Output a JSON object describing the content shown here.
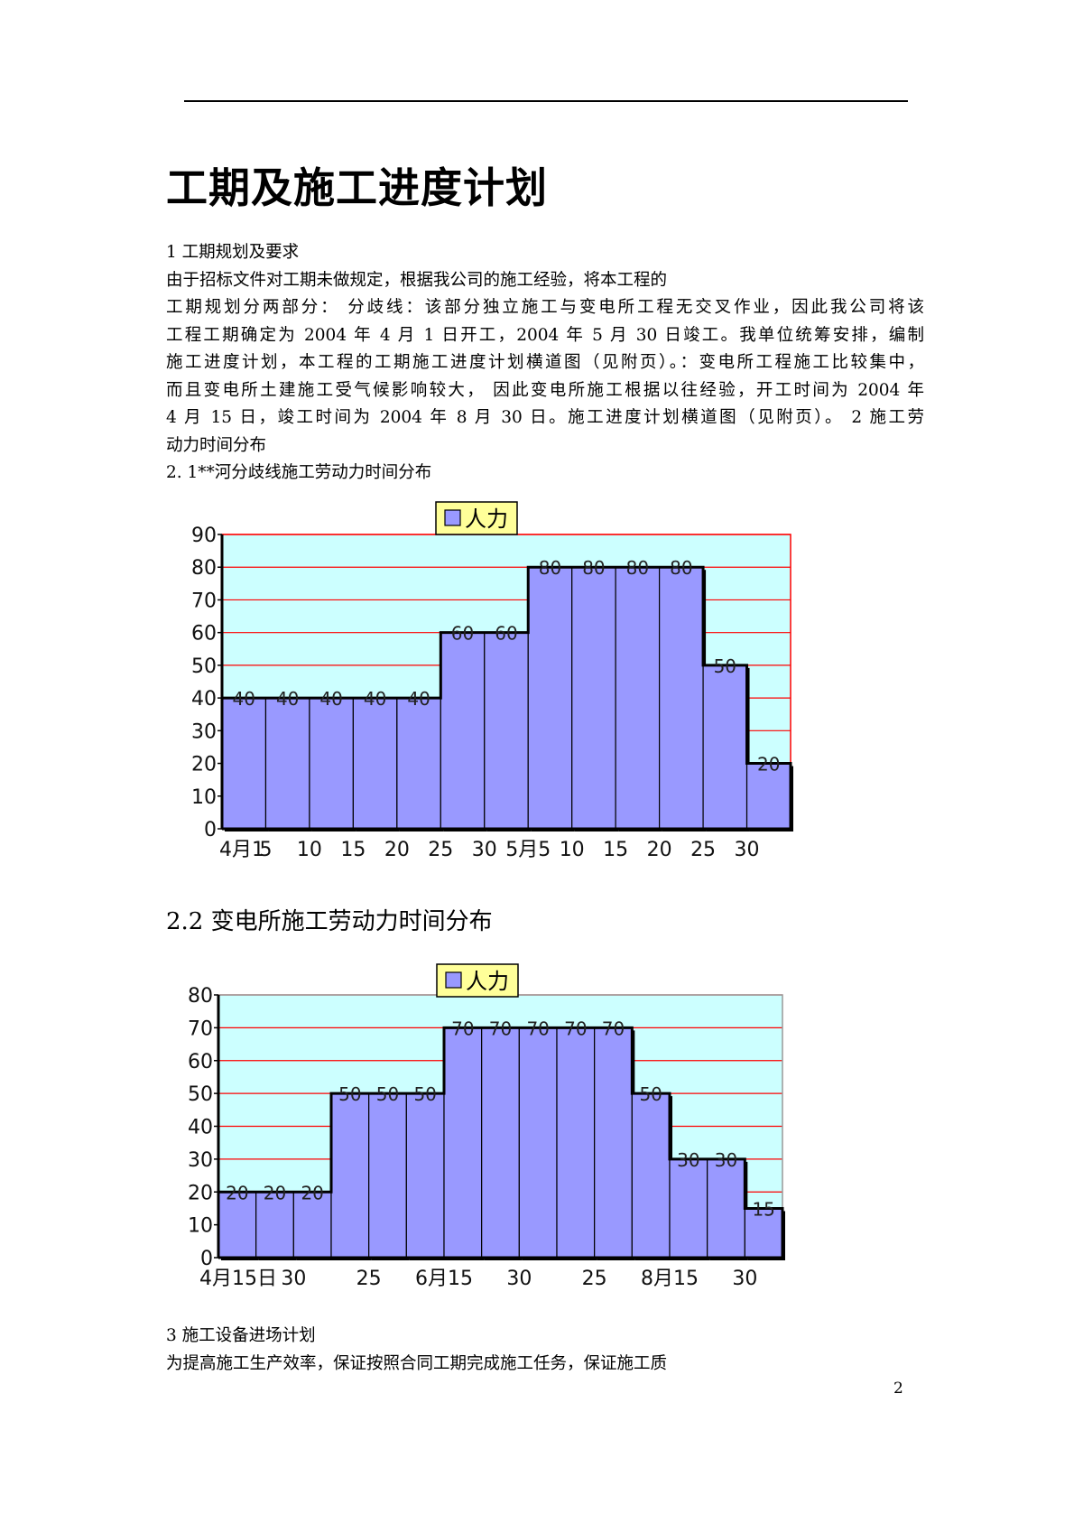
{
  "page": {
    "title": "工期及施工进度计划",
    "section1_heading": "1  工期规划及要求",
    "intro_line": "由于招标文件对工期未做规定，根据我公司的施工经验，将本工程的",
    "body_lines": [
      "工期规划分两部分：  分歧线：该部分独立施工与变电所工程无交叉作业，因此我公司将该",
      "工程工期确定为 2004  年 4  月 1  日开工，2004 年 5  月 30  日竣工。我单位统筹安排，编制",
      "施工进度计划，本工程的工期施工进度计划横道图（见附页）。：变电所工程施工比较集中，",
      "而且变电所土建施工受气候影响较大， 因此变电所施工根据以往经验，开工时间为 2004  年",
      "4  月 15  日，竣工时间为 2004  年 8  月 30  日。施工进度计划横道图（见附页）。 2  施工劳"
    ],
    "body_last_line": "动力时间分布",
    "section21_heading": "2. 1**河分歧线施工劳动力时间分布",
    "section22_heading": "2.2  变电所施工劳动力时间分布",
    "section3_heading": "3  施工设备进场计划",
    "section3_line": "为提高施工生产效率，保证按照合同工期完成施工任务，保证施工质",
    "page_number": "2"
  },
  "chart_data": [
    {
      "type": "bar",
      "legend": "人力",
      "legend_position": "top-center",
      "categories": [
        "4月1",
        "5",
        "10",
        "15",
        "20",
        "25",
        "30",
        "5月5",
        "10",
        "15",
        "20",
        "25",
        "30"
      ],
      "values": [
        40,
        40,
        40,
        40,
        40,
        60,
        60,
        80,
        80,
        80,
        80,
        50,
        20
      ],
      "ylim": [
        0,
        90
      ],
      "yticks": [
        0,
        10,
        20,
        30,
        40,
        50,
        60,
        70,
        80,
        90
      ],
      "grid": true,
      "colors": {
        "bar": "#9999ff",
        "plot_bg": "#ccffff",
        "grid": "#ff0000",
        "frame": "#ff0000",
        "legend_bg": "#ffff99"
      }
    },
    {
      "type": "bar",
      "legend": "人力",
      "legend_position": "top-center",
      "categories": [
        "4月15日",
        "",
        "30",
        "",
        "25",
        "",
        "6月15",
        "",
        "30",
        "",
        "25",
        "",
        "8月15",
        "",
        "30"
      ],
      "values": [
        20,
        20,
        20,
        50,
        50,
        50,
        70,
        70,
        70,
        70,
        70,
        50,
        30,
        30,
        15
      ],
      "ylim": [
        0,
        80
      ],
      "yticks": [
        0,
        10,
        20,
        30,
        40,
        50,
        60,
        70,
        80
      ],
      "grid": true,
      "colors": {
        "bar": "#9999ff",
        "plot_bg": "#ccffff",
        "grid": "#ff0000",
        "frame": "#999999",
        "legend_bg": "#ffff99"
      }
    }
  ]
}
